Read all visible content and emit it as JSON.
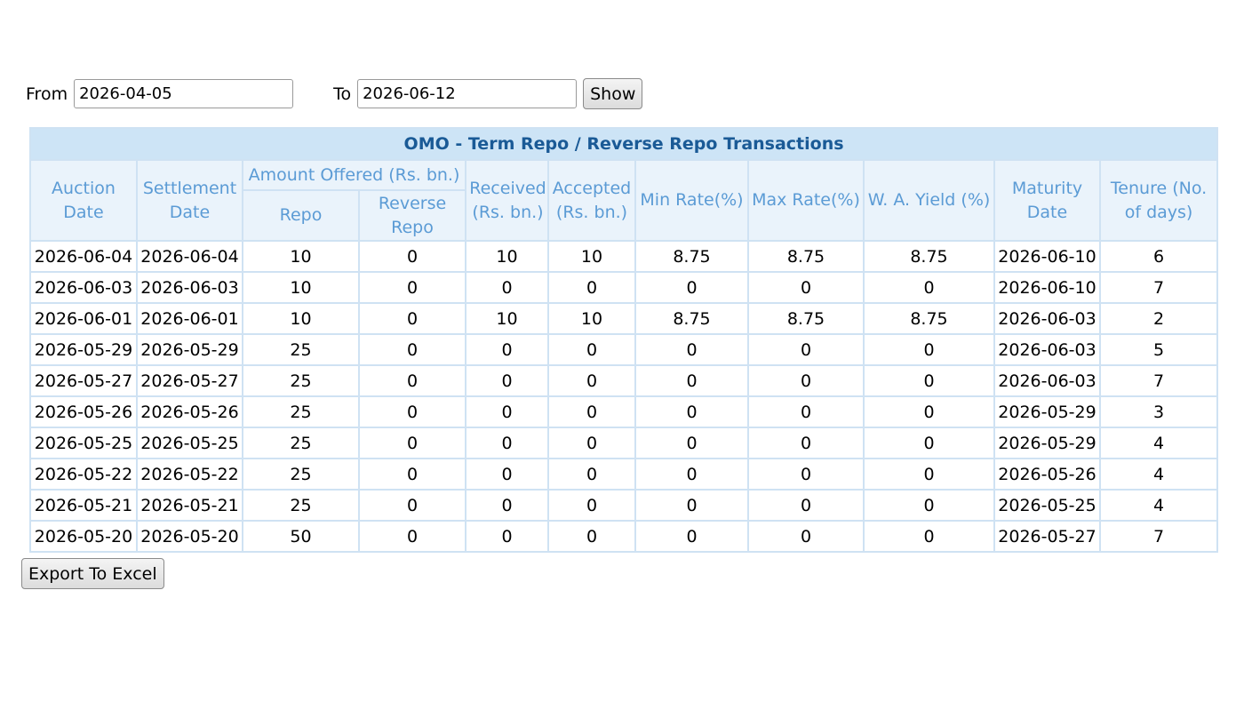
{
  "filter": {
    "from_label": "From",
    "from_value": "2026-04-05",
    "to_label": "To",
    "to_value": "2026-06-12",
    "show_label": "Show"
  },
  "table": {
    "title": "OMO - Term Repo / Reverse Repo Transactions",
    "headers": {
      "auction_date": "Auction Date",
      "settlement_date": "Settlement Date",
      "amount_offered": "Amount Offered (Rs. bn.)",
      "repo": "Repo",
      "reverse_repo": "Reverse Repo",
      "received": "Received (Rs. bn.)",
      "accepted": "Accepted (Rs. bn.)",
      "min_rate": "Min Rate(%)",
      "max_rate": "Max Rate(%)",
      "wa_yield": "W. A. Yield (%)",
      "maturity_date": "Maturity Date",
      "tenure": "Tenure (No. of days)"
    },
    "rows": [
      [
        "2026-06-04",
        "2026-06-04",
        "10",
        "0",
        "10",
        "10",
        "8.75",
        "8.75",
        "8.75",
        "2026-06-10",
        "6"
      ],
      [
        "2026-06-03",
        "2026-06-03",
        "10",
        "0",
        "0",
        "0",
        "0",
        "0",
        "0",
        "2026-06-10",
        "7"
      ],
      [
        "2026-06-01",
        "2026-06-01",
        "10",
        "0",
        "10",
        "10",
        "8.75",
        "8.75",
        "8.75",
        "2026-06-03",
        "2"
      ],
      [
        "2026-05-29",
        "2026-05-29",
        "25",
        "0",
        "0",
        "0",
        "0",
        "0",
        "0",
        "2026-06-03",
        "5"
      ],
      [
        "2026-05-27",
        "2026-05-27",
        "25",
        "0",
        "0",
        "0",
        "0",
        "0",
        "0",
        "2026-06-03",
        "7"
      ],
      [
        "2026-05-26",
        "2026-05-26",
        "25",
        "0",
        "0",
        "0",
        "0",
        "0",
        "0",
        "2026-05-29",
        "3"
      ],
      [
        "2026-05-25",
        "2026-05-25",
        "25",
        "0",
        "0",
        "0",
        "0",
        "0",
        "0",
        "2026-05-29",
        "4"
      ],
      [
        "2026-05-22",
        "2026-05-22",
        "25",
        "0",
        "0",
        "0",
        "0",
        "0",
        "0",
        "2026-05-26",
        "4"
      ],
      [
        "2026-05-21",
        "2026-05-21",
        "25",
        "0",
        "0",
        "0",
        "0",
        "0",
        "0",
        "2026-05-25",
        "4"
      ],
      [
        "2026-05-20",
        "2026-05-20",
        "50",
        "0",
        "0",
        "0",
        "0",
        "0",
        "0",
        "2026-05-27",
        "7"
      ]
    ]
  },
  "export_label": "Export To Excel"
}
